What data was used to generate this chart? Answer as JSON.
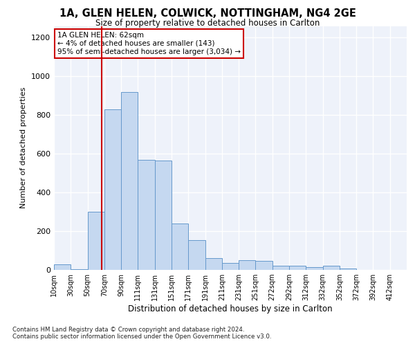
{
  "title": "1A, GLEN HELEN, COLWICK, NOTTINGHAM, NG4 2GE",
  "subtitle": "Size of property relative to detached houses in Carlton",
  "xlabel": "Distribution of detached houses by size in Carlton",
  "ylabel": "Number of detached properties",
  "annotation_lines": [
    "1A GLEN HELEN: 62sqm",
    "← 4% of detached houses are smaller (143)",
    "95% of semi-detached houses are larger (3,034) →"
  ],
  "bin_labels": [
    "10sqm",
    "30sqm",
    "50sqm",
    "70sqm",
    "90sqm",
    "111sqm",
    "131sqm",
    "151sqm",
    "171sqm",
    "191sqm",
    "211sqm",
    "231sqm",
    "251sqm",
    "272sqm",
    "292sqm",
    "312sqm",
    "332sqm",
    "352sqm",
    "372sqm",
    "392sqm",
    "412sqm"
  ],
  "bar_heights": [
    30,
    5,
    300,
    830,
    920,
    570,
    565,
    240,
    155,
    60,
    35,
    50,
    45,
    22,
    22,
    15,
    20,
    8,
    0,
    0,
    0
  ],
  "bar_color": "#c5d8f0",
  "bar_edgecolor": "#6699cc",
  "vline_index": 2.85,
  "vline_color": "#cc0000",
  "ylim": [
    0,
    1260
  ],
  "yticks": [
    0,
    200,
    400,
    600,
    800,
    1000,
    1200
  ],
  "background_color": "#eef2fa",
  "grid_color": "#ffffff",
  "footnote1": "Contains HM Land Registry data © Crown copyright and database right 2024.",
  "footnote2": "Contains public sector information licensed under the Open Government Licence v3.0."
}
